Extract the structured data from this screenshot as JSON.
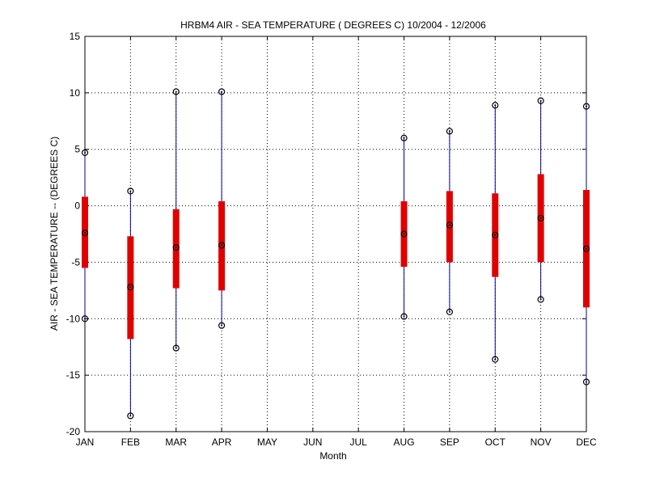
{
  "chart_data": {
    "type": "box",
    "title": "HRBM4  AIR - SEA TEMPERATURE ( DEGREES C) 10/2004 - 12/2006",
    "xlabel": "Month",
    "ylabel": "AIR - SEA TEMPERATURE -- (DEGREES C)",
    "ylim": [
      -20,
      15
    ],
    "yticks": [
      15,
      10,
      5,
      0,
      -5,
      -10,
      -15,
      -20
    ],
    "categories": [
      "JAN",
      "FEB",
      "MAR",
      "APR",
      "MAY",
      "JUN",
      "JUL",
      "AUG",
      "SEP",
      "OCT",
      "NOV",
      "DEC"
    ],
    "grid": true,
    "boxes": [
      {
        "month": "JAN",
        "max": 4.7,
        "q3": 0.8,
        "median": -2.4,
        "q1": -5.5,
        "min": -10.0
      },
      {
        "month": "FEB",
        "max": 1.3,
        "q3": -2.7,
        "median": -7.2,
        "q1": -11.8,
        "min": -18.6
      },
      {
        "month": "MAR",
        "max": 10.1,
        "q3": -0.3,
        "median": -3.7,
        "q1": -7.3,
        "min": -12.6
      },
      {
        "month": "APR",
        "max": 10.1,
        "q3": 0.4,
        "median": -3.5,
        "q1": -7.5,
        "min": -10.6
      },
      {
        "month": "MAY",
        "max": null,
        "q3": null,
        "median": null,
        "q1": null,
        "min": null
      },
      {
        "month": "JUN",
        "max": null,
        "q3": null,
        "median": null,
        "q1": null,
        "min": null
      },
      {
        "month": "JUL",
        "max": null,
        "q3": null,
        "median": null,
        "q1": null,
        "min": null
      },
      {
        "month": "AUG",
        "max": 6.0,
        "q3": 0.4,
        "median": -2.5,
        "q1": -5.4,
        "min": -9.8
      },
      {
        "month": "SEP",
        "max": 6.6,
        "q3": 1.3,
        "median": -1.7,
        "q1": -5.0,
        "min": -9.4
      },
      {
        "month": "OCT",
        "max": 8.9,
        "q3": 1.1,
        "median": -2.6,
        "q1": -6.3,
        "min": -13.6
      },
      {
        "month": "NOV",
        "max": 9.3,
        "q3": 2.8,
        "median": -1.1,
        "q1": -5.0,
        "min": -8.3
      },
      {
        "month": "DEC",
        "max": 8.8,
        "q3": 1.4,
        "median": -3.8,
        "q1": -9.0,
        "min": -15.6
      }
    ],
    "colors": {
      "whisker": "#0000a0",
      "box": "#e00000",
      "marker": "#000000",
      "grid": "#000000"
    }
  }
}
